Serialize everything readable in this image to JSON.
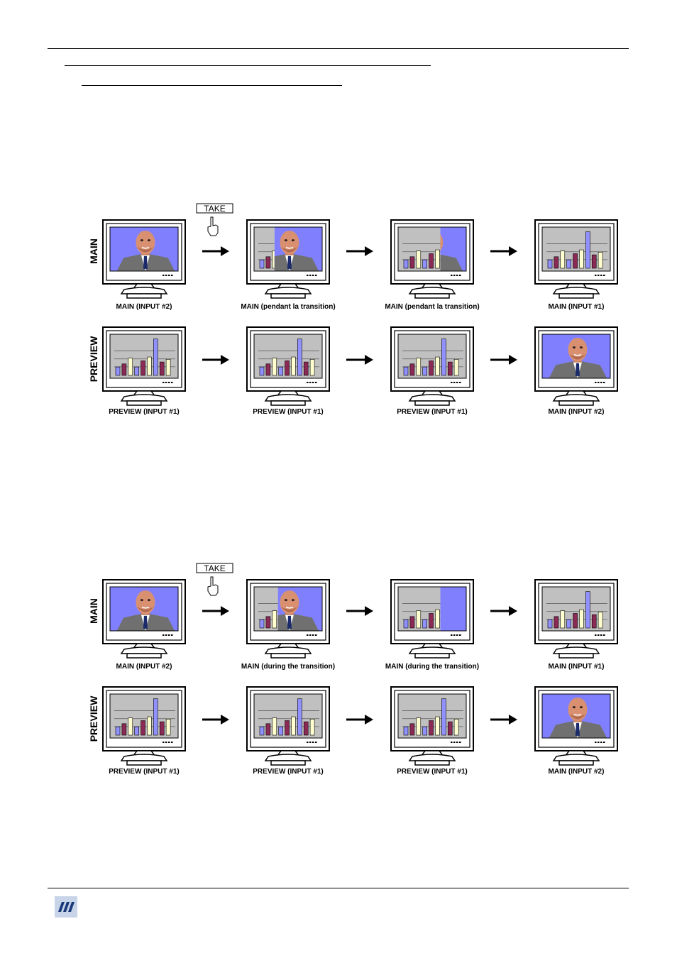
{
  "colors": {
    "bg_panel": "#ffffff",
    "screen_blue": "#8080ff",
    "chart_gray": "#c0c0c0"
  },
  "figures": [
    {
      "take_label": "TAKE",
      "row_labels": {
        "main": "MAIN",
        "preview": "PREVIEW"
      },
      "main_captions": [
        "MAIN (INPUT #2)",
        "MAIN (pendant la transition)",
        "MAIN (pendant la transition)",
        "MAIN (INPUT #1)"
      ],
      "preview_captions": [
        "PREVIEW (INPUT #1)",
        "PREVIEW (INPUT #1)",
        "PREVIEW (INPUT #1)",
        "MAIN (INPUT #2)"
      ]
    },
    {
      "take_label": "TAKE",
      "row_labels": {
        "main": "MAIN",
        "preview": "PREVIEW"
      },
      "main_captions": [
        "MAIN (INPUT #2)",
        "MAIN (during the transition)",
        "MAIN (during the transition)",
        "MAIN (INPUT #1)"
      ],
      "preview_captions": [
        "PREVIEW (INPUT #1)",
        "PREVIEW (INPUT #1)",
        "PREVIEW (INPUT #1)",
        "MAIN (INPUT #2)"
      ]
    }
  ],
  "icons": {
    "hand": "pointing-hand-icon",
    "arrow": "right-arrow-icon",
    "logo": "company-logo"
  }
}
